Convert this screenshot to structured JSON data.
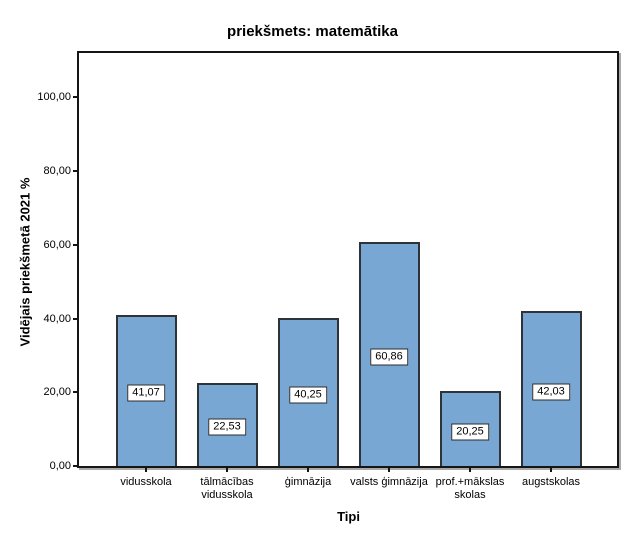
{
  "chart_data": {
    "type": "bar",
    "title": "priekšmets: matemātika",
    "xlabel": "Tipi",
    "ylabel": "Vidējais priekšmetā 2021 %",
    "categories": [
      "vidusskola",
      "tālmācības\nvidusskola",
      "ģimnāzija",
      "valsts ģimnāzija",
      "prof.+mākslas\nskolas",
      "augstskolas"
    ],
    "values": [
      41.07,
      22.53,
      40.25,
      60.86,
      20.25,
      42.03
    ],
    "value_labels": [
      "41,07",
      "22,53",
      "40,25",
      "60,86",
      "20,25",
      "42,03"
    ],
    "y_ticks": [
      0,
      20,
      40,
      60,
      80,
      100
    ],
    "y_tick_labels": [
      "0,00",
      "20,00",
      "40,00",
      "60,00",
      "80,00",
      "100,00"
    ],
    "ylim": [
      0,
      112
    ],
    "grid": false,
    "legend_position": "none",
    "bar_color": "#79A7D3",
    "bar_border_color": "#2E3338",
    "frame_color": "#151515",
    "value_box_bg": "#FFFFFF"
  }
}
